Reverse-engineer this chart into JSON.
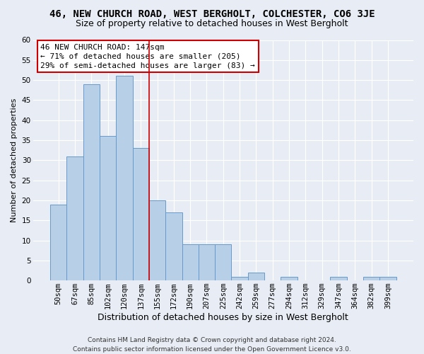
{
  "title": "46, NEW CHURCH ROAD, WEST BERGHOLT, COLCHESTER, CO6 3JE",
  "subtitle": "Size of property relative to detached houses in West Bergholt",
  "xlabel": "Distribution of detached houses by size in West Bergholt",
  "ylabel": "Number of detached properties",
  "footer_line1": "Contains HM Land Registry data © Crown copyright and database right 2024.",
  "footer_line2": "Contains public sector information licensed under the Open Government Licence v3.0.",
  "categories": [
    "50sqm",
    "67sqm",
    "85sqm",
    "102sqm",
    "120sqm",
    "137sqm",
    "155sqm",
    "172sqm",
    "190sqm",
    "207sqm",
    "225sqm",
    "242sqm",
    "259sqm",
    "277sqm",
    "294sqm",
    "312sqm",
    "329sqm",
    "347sqm",
    "364sqm",
    "382sqm",
    "399sqm"
  ],
  "values": [
    19,
    31,
    49,
    36,
    51,
    33,
    20,
    17,
    9,
    9,
    9,
    1,
    2,
    0,
    1,
    0,
    0,
    1,
    0,
    1,
    1
  ],
  "bar_color": "#b8cfe8",
  "bar_edge_color": "#6699cc",
  "vline_color": "#cc0000",
  "vline_x_index": 5,
  "annotation_text_line1": "46 NEW CHURCH ROAD: 147sqm",
  "annotation_text_line2": "← 71% of detached houses are smaller (205)",
  "annotation_text_line3": "29% of semi-detached houses are larger (83) →",
  "annotation_box_color": "white",
  "annotation_box_edge": "#cc0000",
  "ylim": [
    0,
    60
  ],
  "yticks": [
    0,
    5,
    10,
    15,
    20,
    25,
    30,
    35,
    40,
    45,
    50,
    55,
    60
  ],
  "background_color": "#e8ecf4",
  "plot_background_color": "#e8ecf4",
  "grid_color": "white",
  "title_fontsize": 10,
  "subtitle_fontsize": 9,
  "xlabel_fontsize": 9,
  "ylabel_fontsize": 8,
  "tick_fontsize": 7.5,
  "footer_fontsize": 6.5,
  "annotation_fontsize": 8
}
